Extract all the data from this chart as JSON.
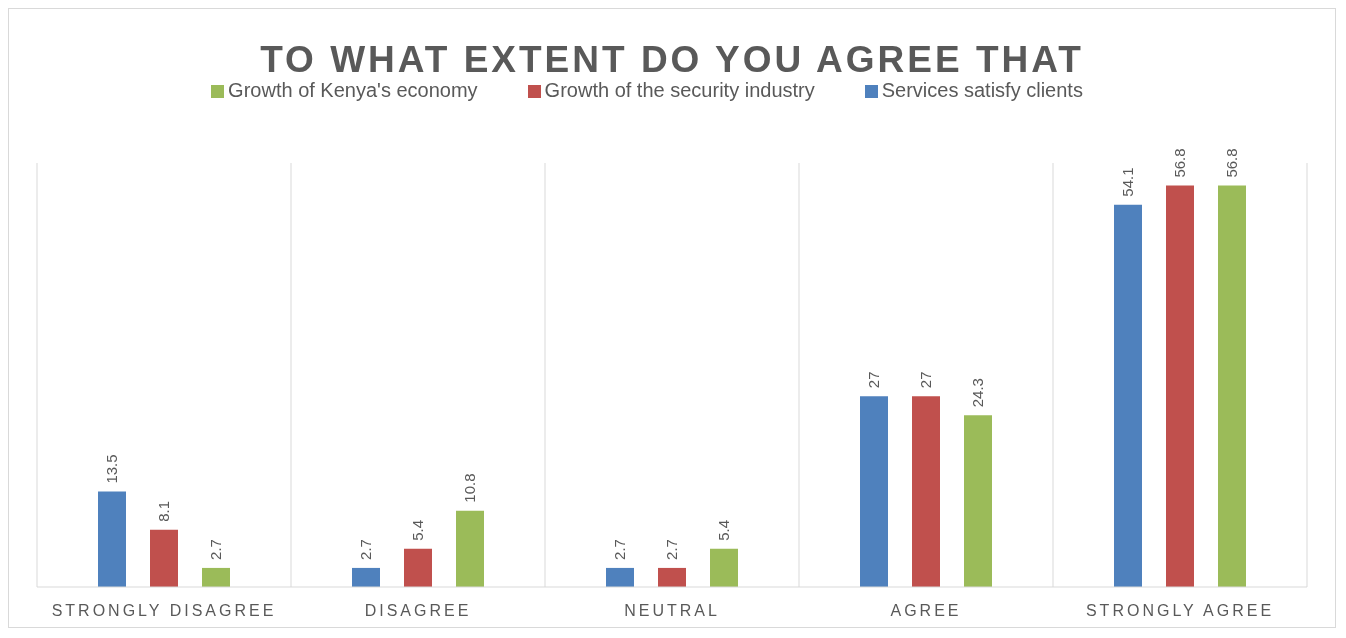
{
  "chart_data": {
    "type": "bar",
    "title": "TO WHAT EXTENT DO YOU AGREE THAT",
    "categories": [
      "STRONGLY DISAGREE",
      "DISAGREE",
      "NEUTRAL",
      "AGREE",
      "STRONGLY AGREE"
    ],
    "series": [
      {
        "name": "Services satisfy clients",
        "color": "#4f81bd",
        "values": [
          13.5,
          2.7,
          2.7,
          27,
          54.1
        ]
      },
      {
        "name": "Growth of the security industry",
        "color": "#c0504d",
        "values": [
          8.1,
          5.4,
          2.7,
          27,
          56.8
        ]
      },
      {
        "name": "Growth of Kenya's economy",
        "color": "#9bbb59",
        "values": [
          2.7,
          10.8,
          5.4,
          24.3,
          56.8
        ]
      }
    ],
    "data_labels": true,
    "grid": "x",
    "legend": "top"
  }
}
